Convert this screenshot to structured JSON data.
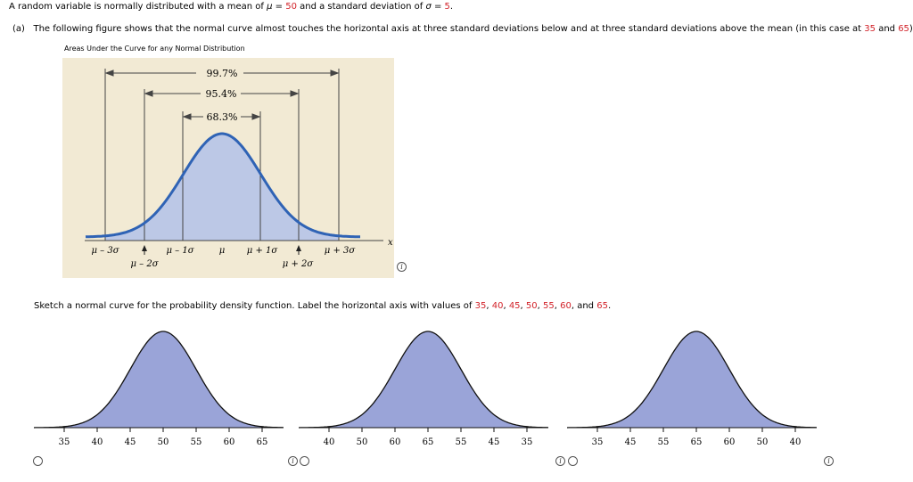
{
  "question": {
    "intro_a": "A random variable is normally distributed with a mean of ",
    "mu_sym": "μ",
    "eq": " = ",
    "mu_val": "50",
    "intro_b": " and a standard deviation of ",
    "sigma_sym": "σ",
    "sigma_val": "5",
    "period": "."
  },
  "part_a": {
    "label": "(a)",
    "text": "The following figure shows that the normal curve almost touches the horizontal axis at three standard deviations below and at three standard deviations above the mean (in this case at ",
    "val1": "35",
    "and": " and ",
    "val2": "65",
    "end": ")."
  },
  "figure": {
    "title": "Areas Under the Curve for any Normal Distribution",
    "pct_997": "99.7%",
    "pct_954": "95.4%",
    "pct_683": "68.3%",
    "axis_var": "x",
    "labels": {
      "m3": "μ – 3σ",
      "m2": "μ – 2σ",
      "m1": "μ – 1σ",
      "mu": "μ",
      "p1": "μ + 1σ",
      "p2": "μ + 2σ",
      "p3": "μ + 3σ"
    }
  },
  "sketch": {
    "text": "Sketch a normal curve for the probability density function. Label the horizontal axis with values of ",
    "vals": [
      "35",
      "40",
      "45",
      "50",
      "55",
      "60",
      "65"
    ],
    "sep": ", ",
    "and": "and",
    "end": "."
  },
  "options": [
    {
      "ticks": [
        "35",
        "40",
        "45",
        "50",
        "55",
        "60",
        "65"
      ]
    },
    {
      "ticks": [
        "40",
        "50",
        "60",
        "65",
        "55",
        "45",
        "35"
      ]
    },
    {
      "ticks": [
        "35",
        "45",
        "55",
        "65",
        "60",
        "50",
        "40"
      ]
    }
  ],
  "colors": {
    "figure_bg": "#f2ead4",
    "figure_fill": "#bcc8e6",
    "figure_curve": "#2f63b5",
    "option_fill": "#9aa4d8",
    "red": "#d2232a"
  }
}
